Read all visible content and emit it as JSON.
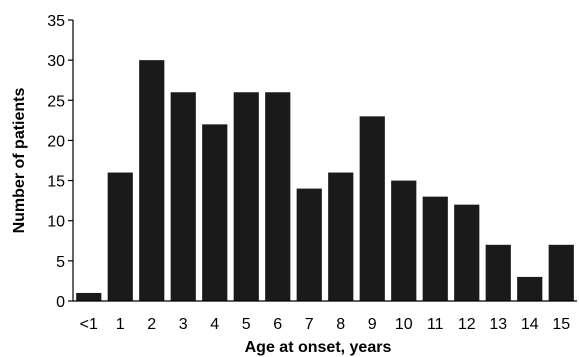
{
  "chart_data": {
    "type": "bar",
    "categories": [
      "<1",
      "1",
      "2",
      "3",
      "4",
      "5",
      "6",
      "7",
      "8",
      "9",
      "10",
      "11",
      "12",
      "13",
      "14",
      "15"
    ],
    "values": [
      1,
      16,
      30,
      26,
      22,
      26,
      26,
      14,
      16,
      23,
      15,
      13,
      12,
      7,
      3,
      7
    ],
    "xlabel": "Age at onset, years",
    "ylabel": "Number of patients",
    "ylim": [
      0,
      35
    ],
    "yticks": [
      "0",
      "5",
      "10",
      "15",
      "20",
      "25",
      "30",
      "35"
    ],
    "grid": false,
    "legend": "none",
    "bar_color": "#1a1a1a"
  }
}
